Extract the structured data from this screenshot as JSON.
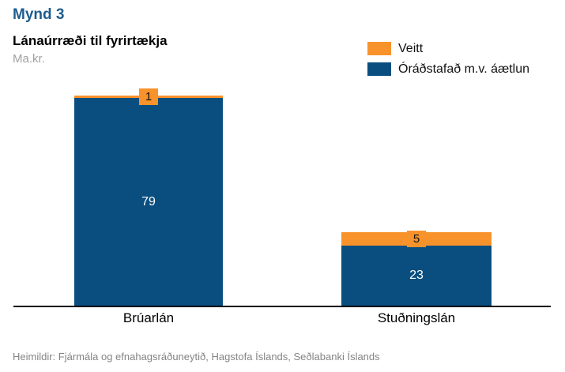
{
  "header": {
    "figure_label": "Mynd 3",
    "title": "Lánaúrræði til fyrirtækja",
    "unit": "Ma.kr."
  },
  "legend": {
    "items": [
      {
        "label": "Veitt",
        "color": "#F8922B"
      },
      {
        "label": "Óráðstafað m.v. áætlun",
        "color": "#0A4E7F"
      }
    ]
  },
  "footer": {
    "source": "Heimildir: Fjármála og efnahagsráðuneytið, Hagstofa Íslands, Seðlabanki Íslands"
  },
  "colors": {
    "figure_label_blue": "#1E5C8E",
    "bar_blue": "#0A4E7F",
    "bar_orange": "#F8922B",
    "axis": "#000000",
    "unit_text": "#A0A0A0",
    "source_text": "#848484"
  },
  "chart_data": {
    "type": "bar",
    "stacked": true,
    "categories": [
      "Brúarlán",
      "Stuðningslán"
    ],
    "series": [
      {
        "name": "Óráðstafað m.v. áætlun",
        "color": "#0A4E7F",
        "values": [
          79,
          23
        ]
      },
      {
        "name": "Veitt",
        "color": "#F8922B",
        "values": [
          1,
          5
        ]
      }
    ],
    "title": "Lánaúrræði til fyrirtækja",
    "xlabel": "",
    "ylabel": "Ma.kr.",
    "ylim": [
      0,
      80
    ],
    "grid": false,
    "legend_position": "top-right",
    "value_labels": true
  }
}
